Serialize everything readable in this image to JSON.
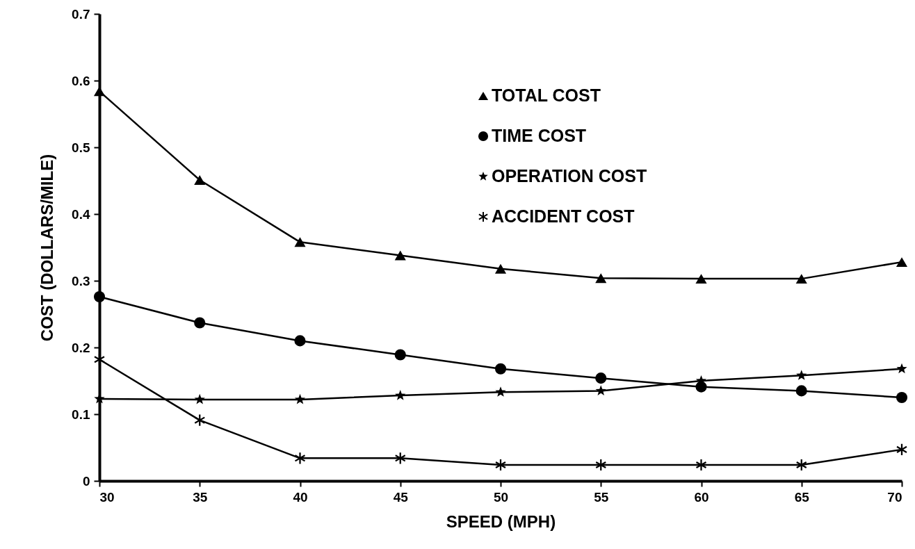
{
  "chart_data": {
    "type": "line",
    "xlabel": "SPEED (MPH)",
    "ylabel": "COST (DOLLARS/MILE)",
    "x": [
      30,
      35,
      40,
      45,
      50,
      55,
      60,
      65,
      70
    ],
    "series": [
      {
        "name": "TOTAL COST",
        "color": "#000000",
        "marker": "triangle",
        "values": [
          0.584,
          0.451,
          0.358,
          0.338,
          0.318,
          0.304,
          0.303,
          0.303,
          0.328
        ]
      },
      {
        "name": "TIME COST",
        "color": "#000000",
        "marker": "circle",
        "values": [
          0.276,
          0.237,
          0.21,
          0.189,
          0.168,
          0.154,
          0.141,
          0.135,
          0.125
        ]
      },
      {
        "name": "OPERATION COST",
        "color": "#000000",
        "marker": "star",
        "values": [
          0.123,
          0.122,
          0.122,
          0.128,
          0.133,
          0.135,
          0.15,
          0.158,
          0.168
        ]
      },
      {
        "name": "ACCIDENT COST",
        "color": "#000000",
        "marker": "cross",
        "values": [
          0.182,
          0.091,
          0.034,
          0.034,
          0.024,
          0.024,
          0.024,
          0.024,
          0.047
        ]
      }
    ],
    "xlim": [
      30,
      70
    ],
    "xticks": [
      30,
      35,
      40,
      45,
      50,
      55,
      60,
      65,
      70
    ],
    "ylim": [
      0,
      0.7
    ],
    "yticks": [
      {
        "value": 0,
        "label": "0"
      },
      {
        "value": 0.1,
        "label": "0.1"
      },
      {
        "value": 0.2,
        "label": "0.2"
      },
      {
        "value": 0.3,
        "label": "0.3"
      },
      {
        "value": 0.4,
        "label": "0.4"
      },
      {
        "value": 0.5,
        "label": "0.5"
      },
      {
        "value": 0.6,
        "label": "0.6"
      },
      {
        "value": 0.7,
        "label": "0.7"
      }
    ],
    "grid": false,
    "legend": "top right",
    "line_style": "solid"
  }
}
